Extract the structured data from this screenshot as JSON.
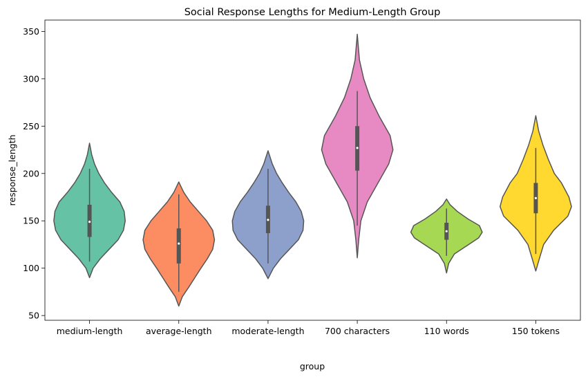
{
  "chart_data": {
    "type": "violin",
    "title": "Social Response Lengths for Medium-Length Group",
    "xlabel": "group",
    "ylabel": "response_length",
    "ylim": [
      45,
      362
    ],
    "yticks": [
      50,
      100,
      150,
      200,
      250,
      300,
      350
    ],
    "grid": false,
    "categories": [
      "medium-length",
      "average-length",
      "moderate-length",
      "700 characters",
      "110 words",
      "150 tokens"
    ],
    "series": [
      {
        "category": "medium-length",
        "color": "#66c2a5",
        "min": 90,
        "max": 232,
        "q1": 133,
        "median": 149,
        "q3": 167,
        "whisker_low": 107,
        "whisker_high": 205,
        "density": [
          [
            90,
            0.0
          ],
          [
            100,
            0.1
          ],
          [
            110,
            0.3
          ],
          [
            120,
            0.55
          ],
          [
            130,
            0.8
          ],
          [
            140,
            0.95
          ],
          [
            150,
            1.0
          ],
          [
            160,
            0.97
          ],
          [
            170,
            0.85
          ],
          [
            180,
            0.62
          ],
          [
            190,
            0.42
          ],
          [
            200,
            0.26
          ],
          [
            210,
            0.14
          ],
          [
            220,
            0.06
          ],
          [
            232,
            0.0
          ]
        ]
      },
      {
        "category": "average-length",
        "color": "#fc8d62",
        "min": 60,
        "max": 191,
        "q1": 105,
        "median": 126,
        "q3": 142,
        "whisker_low": 75,
        "whisker_high": 178,
        "density": [
          [
            60,
            0.0
          ],
          [
            70,
            0.1
          ],
          [
            80,
            0.28
          ],
          [
            90,
            0.45
          ],
          [
            100,
            0.62
          ],
          [
            110,
            0.8
          ],
          [
            120,
            0.95
          ],
          [
            130,
            1.0
          ],
          [
            140,
            0.95
          ],
          [
            150,
            0.78
          ],
          [
            160,
            0.55
          ],
          [
            170,
            0.32
          ],
          [
            180,
            0.14
          ],
          [
            191,
            0.0
          ]
        ]
      },
      {
        "category": "moderate-length",
        "color": "#8da0cb",
        "min": 89,
        "max": 224,
        "q1": 137,
        "median": 151,
        "q3": 166,
        "whisker_low": 105,
        "whisker_high": 205,
        "density": [
          [
            89,
            0.0
          ],
          [
            100,
            0.15
          ],
          [
            110,
            0.35
          ],
          [
            120,
            0.6
          ],
          [
            130,
            0.85
          ],
          [
            140,
            0.98
          ],
          [
            150,
            1.0
          ],
          [
            160,
            0.93
          ],
          [
            170,
            0.78
          ],
          [
            180,
            0.58
          ],
          [
            190,
            0.4
          ],
          [
            200,
            0.24
          ],
          [
            210,
            0.12
          ],
          [
            224,
            0.0
          ]
        ]
      },
      {
        "category": "700 characters",
        "color": "#e78ac3",
        "min": 111,
        "max": 347,
        "q1": 203,
        "median": 227,
        "q3": 250,
        "whisker_low": 145,
        "whisker_high": 287,
        "density": [
          [
            111,
            0.0
          ],
          [
            130,
            0.04
          ],
          [
            150,
            0.1
          ],
          [
            170,
            0.28
          ],
          [
            190,
            0.58
          ],
          [
            210,
            0.88
          ],
          [
            225,
            1.0
          ],
          [
            240,
            0.92
          ],
          [
            260,
            0.62
          ],
          [
            280,
            0.36
          ],
          [
            300,
            0.18
          ],
          [
            320,
            0.06
          ],
          [
            347,
            0.0
          ]
        ]
      },
      {
        "category": "110 words",
        "color": "#a6d854",
        "min": 95,
        "max": 173,
        "q1": 130,
        "median": 139,
        "q3": 148,
        "whisker_low": 113,
        "whisker_high": 163,
        "density": [
          [
            95,
            0.0
          ],
          [
            105,
            0.06
          ],
          [
            115,
            0.22
          ],
          [
            125,
            0.62
          ],
          [
            132,
            0.9
          ],
          [
            138,
            1.0
          ],
          [
            145,
            0.92
          ],
          [
            152,
            0.6
          ],
          [
            160,
            0.3
          ],
          [
            167,
            0.1
          ],
          [
            173,
            0.0
          ]
        ]
      },
      {
        "category": "150 tokens",
        "color": "#ffd92f",
        "min": 97,
        "max": 261,
        "q1": 158,
        "median": 174,
        "q3": 190,
        "whisker_low": 115,
        "whisker_high": 227,
        "density": [
          [
            97,
            0.0
          ],
          [
            110,
            0.1
          ],
          [
            125,
            0.22
          ],
          [
            140,
            0.5
          ],
          [
            155,
            0.9
          ],
          [
            165,
            1.0
          ],
          [
            175,
            0.93
          ],
          [
            190,
            0.72
          ],
          [
            200,
            0.52
          ],
          [
            215,
            0.35
          ],
          [
            230,
            0.2
          ],
          [
            245,
            0.08
          ],
          [
            261,
            0.0
          ]
        ]
      }
    ]
  }
}
